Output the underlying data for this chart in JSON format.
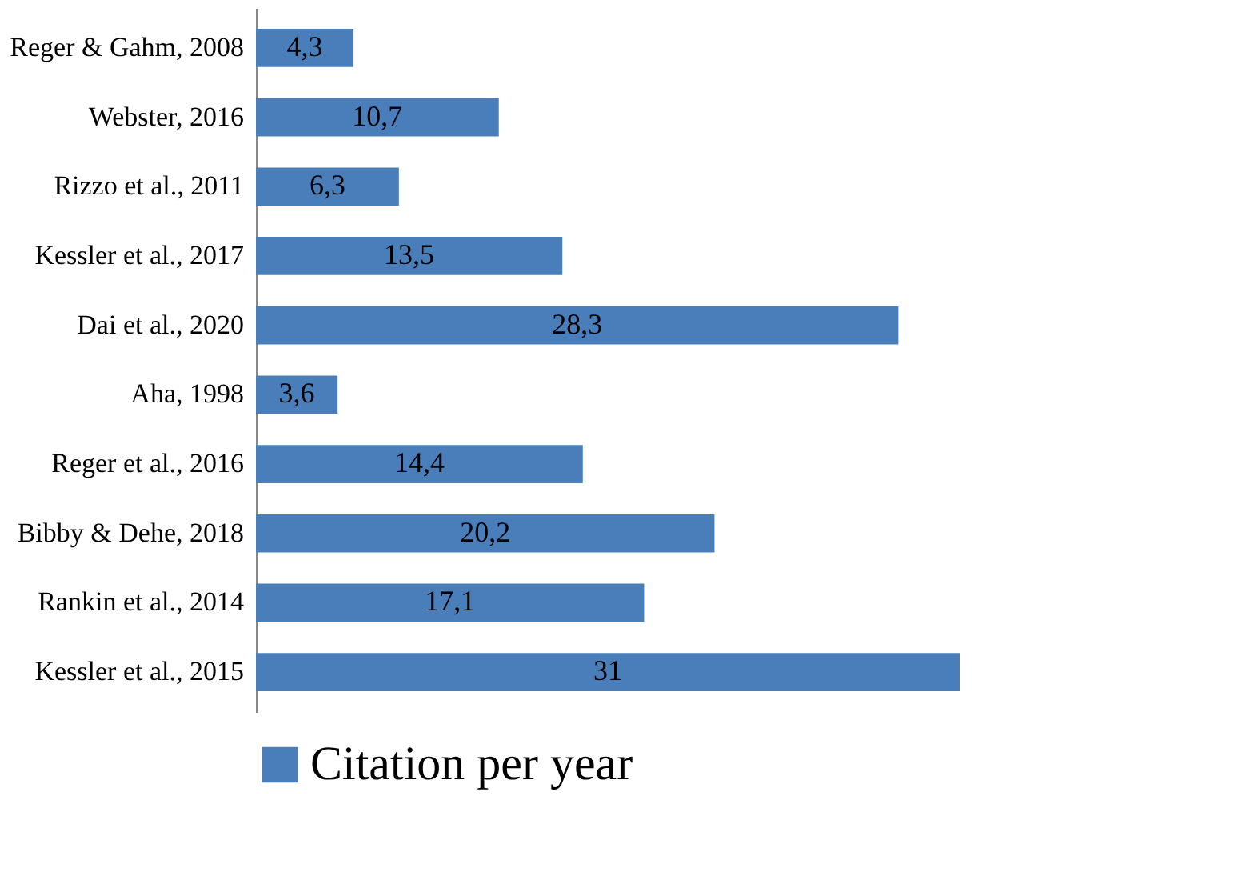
{
  "chart_data": {
    "type": "bar",
    "orientation": "horizontal",
    "tick_labels": "y",
    "categories": [
      "Reger & Gahm, 2008",
      "Webster, 2016",
      "Rizzo et al., 2011",
      "Kessler et al., 2017",
      "Dai et al., 2020",
      "Aha, 1998",
      "Reger et al., 2016",
      "Bibby & Dehe, 2018",
      "Rankin et al., 2014",
      "Kessler et al., 2015"
    ],
    "series": [
      {
        "name": "Citation per year",
        "color": "#4a7ebb",
        "values": [
          4.3,
          10.7,
          6.3,
          13.5,
          28.3,
          3.6,
          14.4,
          20.2,
          17.1,
          31
        ],
        "value_labels": [
          "4,3",
          "10,7",
          "6,3",
          "13,5",
          "28,3",
          "3,6",
          "14,4",
          "20,2",
          "17,1",
          "31"
        ]
      }
    ],
    "legend": "bottom",
    "grid": false
  }
}
